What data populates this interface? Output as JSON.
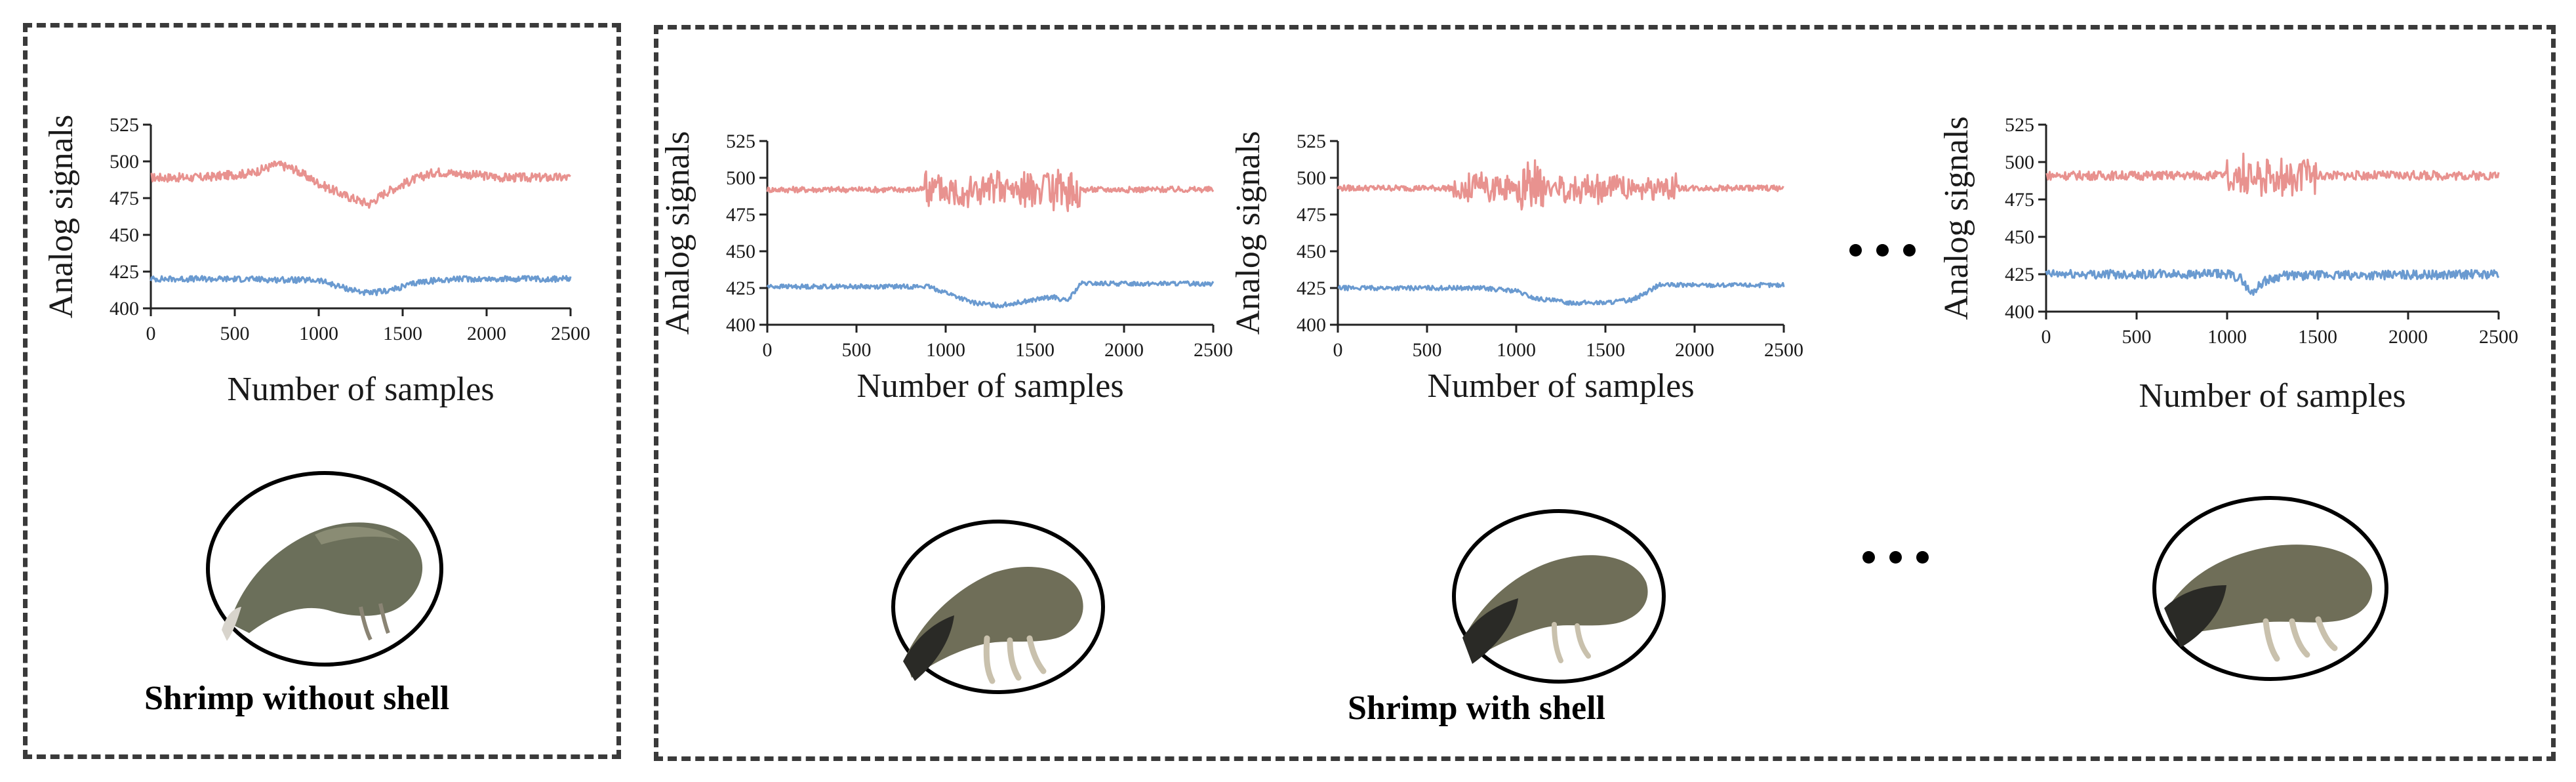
{
  "panels": {
    "left_caption": "Shrimp without shell",
    "right_caption": "Shrimp with shell"
  },
  "colors": {
    "upper_series": "#e8928f",
    "lower_series": "#6a9ad0",
    "shrimp_body": "#6b6f5a",
    "shrimp_tail": "#2a2a26"
  },
  "icons": [
    "shrimp-photo",
    "ellipsis-dots"
  ],
  "chart_data": [
    {
      "type": "line",
      "xlabel": "Number of samples",
      "ylabel": "Analog signals",
      "xlim": [
        0,
        2500
      ],
      "ylim": [
        400,
        525
      ],
      "xticks": [
        "0",
        "500",
        "1000",
        "1500",
        "2000",
        "2500"
      ],
      "yticks": [
        "400",
        "425",
        "450",
        "475",
        "500",
        "525"
      ],
      "series": [
        {
          "color": "#e8928f",
          "x": [
            0,
            300,
            600,
            750,
            850,
            1000,
            1150,
            1300,
            1400,
            1550,
            1700,
            1900,
            2100,
            2500
          ],
          "y": [
            489,
            489,
            492,
            498,
            495,
            485,
            477,
            471,
            479,
            487,
            493,
            491,
            489,
            489
          ],
          "noise": 3
        },
        {
          "color": "#6a9ad0",
          "x": [
            0,
            500,
            1000,
            1150,
            1300,
            1450,
            1600,
            1800,
            2500
          ],
          "y": [
            420,
            420,
            419,
            414,
            410,
            413,
            418,
            420,
            420
          ],
          "noise": 2
        }
      ]
    },
    {
      "type": "line",
      "xlabel": "Number of samples",
      "ylabel": "Analog signals",
      "xlim": [
        0,
        2500
      ],
      "ylim": [
        400,
        525
      ],
      "xticks": [
        "0",
        "500",
        "1000",
        "1500",
        "2000",
        "2500"
      ],
      "yticks": [
        "400",
        "425",
        "450",
        "475",
        "500",
        "525"
      ],
      "series": [
        {
          "color": "#e8928f",
          "x": [
            0,
            900,
            1000,
            1500,
            1650,
            1800,
            2500
          ],
          "y": [
            492,
            492,
            492,
            492,
            492,
            492,
            492
          ],
          "noise": 2,
          "burst": [
            [
              880,
              1750,
              14
            ]
          ]
        },
        {
          "color": "#6a9ad0",
          "x": [
            0,
            900,
            1000,
            1150,
            1300,
            1450,
            1600,
            1680,
            1760,
            1800,
            2500
          ],
          "y": [
            426,
            426,
            422,
            415,
            413,
            416,
            419,
            416,
            428,
            428,
            428
          ],
          "noise": 1.5
        }
      ]
    },
    {
      "type": "line",
      "xlabel": "Number of samples",
      "ylabel": "Analog signals",
      "xlim": [
        0,
        2500
      ],
      "ylim": [
        400,
        525
      ],
      "xticks": [
        "0",
        "500",
        "1000",
        "1500",
        "2000",
        "2500"
      ],
      "yticks": [
        "400",
        "425",
        "450",
        "475",
        "500",
        "525"
      ],
      "series": [
        {
          "color": "#e8928f",
          "x": [
            0,
            2500
          ],
          "y": [
            493,
            493
          ],
          "noise": 2,
          "burst": [
            [
              650,
              1900,
              10
            ],
            [
              1000,
              1150,
              18
            ]
          ]
        },
        {
          "color": "#6a9ad0",
          "x": [
            0,
            800,
            1000,
            1100,
            1300,
            1500,
            1650,
            1700,
            1800,
            2500
          ],
          "y": [
            425,
            425,
            423,
            418,
            415,
            415,
            417,
            420,
            427,
            427
          ],
          "noise": 1.5
        }
      ]
    },
    {
      "type": "line",
      "xlabel": "Number of samples",
      "ylabel": "Analog signals",
      "xlim": [
        0,
        2500
      ],
      "ylim": [
        400,
        525
      ],
      "xticks": [
        "0",
        "500",
        "1000",
        "1500",
        "2000",
        "2500"
      ],
      "yticks": [
        "400",
        "425",
        "450",
        "475",
        "500",
        "525"
      ],
      "series": [
        {
          "color": "#e8928f",
          "x": [
            0,
            2500
          ],
          "y": [
            491,
            491
          ],
          "noise": 3,
          "burst": [
            [
              1000,
              1500,
              14
            ]
          ]
        },
        {
          "color": "#6a9ad0",
          "x": [
            0,
            1000,
            1080,
            1130,
            1200,
            1250,
            1300,
            2500
          ],
          "y": [
            425,
            425,
            422,
            412,
            420,
            422,
            424,
            425
          ],
          "noise": 3
        }
      ]
    }
  ]
}
